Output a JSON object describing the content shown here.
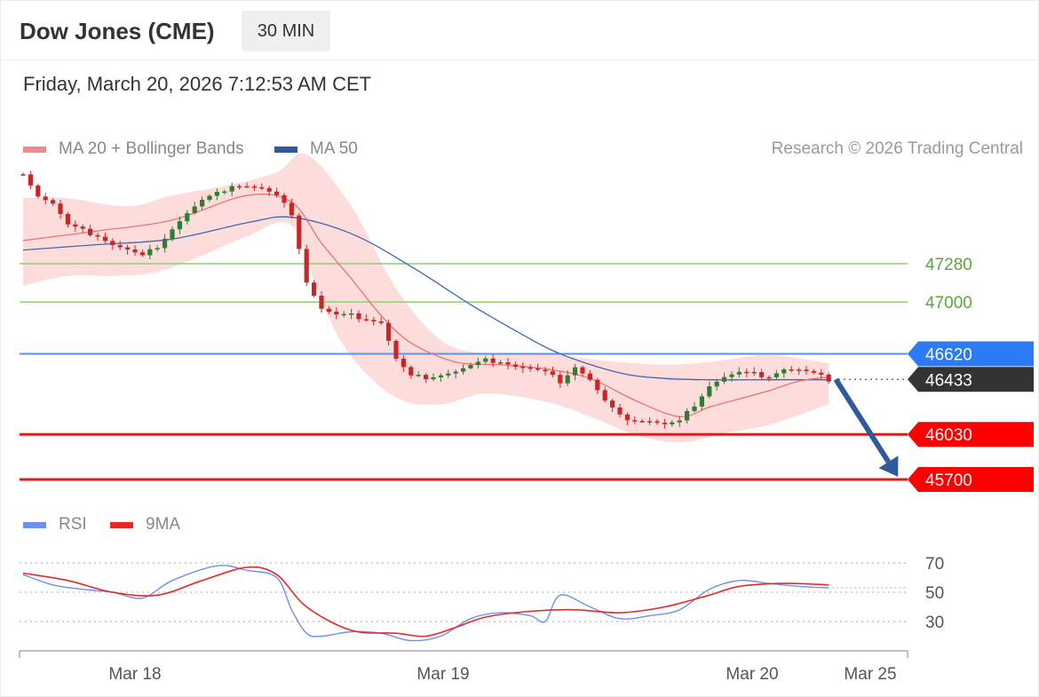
{
  "header": {
    "title": "Dow Jones (CME)",
    "timeframe": "30 MIN",
    "datetime": "Friday, March 20, 2026 7:12:53 AM CET"
  },
  "legend": {
    "ma20_label": "MA 20 + Bollinger Bands",
    "ma50_label": "MA 50",
    "rsi_label": "RSI",
    "rsi_ma_label": "9MA"
  },
  "credit": "Research © 2026 Trading Central",
  "colors": {
    "bullish": "#2e7d32",
    "bearish": "#c62828",
    "ma20": "#f06a6a",
    "bollinger_fill": "#fddcdc",
    "ma50": "#3f68b3",
    "green_level": "#8fcf6f",
    "blue_level": "#5b8ff9",
    "red_level": "#e31b1b",
    "current_label": "#333333",
    "rsi": "#6f8ff0",
    "rsi_ma": "#e82828",
    "arrow": "#2f5b9d"
  },
  "chart_data": [
    {
      "type": "candlestick",
      "title": "Dow Jones (CME)",
      "timeframe": "30 MIN",
      "x_ticks": [
        "Mar 18",
        "Mar 19",
        "Mar 20",
        "Mar 25"
      ],
      "price_levels": [
        {
          "value": 47280,
          "label": "47280",
          "style": "resistance-green"
        },
        {
          "value": 47000,
          "label": "47000",
          "style": "resistance-green"
        },
        {
          "value": 46620,
          "label": "46620",
          "style": "pivot-blue"
        },
        {
          "value": 46433,
          "label": "46433",
          "style": "current-price"
        },
        {
          "value": 46030,
          "label": "46030",
          "style": "support-red"
        },
        {
          "value": 45700,
          "label": "45700",
          "style": "support-red"
        }
      ],
      "forecast_arrow": {
        "from": 46433,
        "to": 45700
      },
      "close_path": [
        [
          0,
          47950
        ],
        [
          2,
          47780
        ],
        [
          4,
          47720
        ],
        [
          6,
          47560
        ],
        [
          8,
          47520
        ],
        [
          10,
          47490
        ],
        [
          12,
          47420
        ],
        [
          14,
          47380
        ],
        [
          16,
          47330
        ],
        [
          18,
          47410
        ],
        [
          20,
          47540
        ],
        [
          22,
          47650
        ],
        [
          24,
          47740
        ],
        [
          26,
          47790
        ],
        [
          28,
          47860
        ],
        [
          30,
          47850
        ],
        [
          32,
          47830
        ],
        [
          34,
          47770
        ],
        [
          36,
          47650
        ],
        [
          38,
          47150
        ],
        [
          40,
          46950
        ],
        [
          42,
          46900
        ],
        [
          44,
          46900
        ],
        [
          46,
          46880
        ],
        [
          48,
          46850
        ],
        [
          50,
          46580
        ],
        [
          52,
          46450
        ],
        [
          54,
          46450
        ],
        [
          56,
          46470
        ],
        [
          58,
          46490
        ],
        [
          60,
          46530
        ],
        [
          62,
          46570
        ],
        [
          64,
          46570
        ],
        [
          66,
          46530
        ],
        [
          68,
          46510
        ],
        [
          70,
          46480
        ],
        [
          72,
          46420
        ],
        [
          74,
          46530
        ],
        [
          76,
          46430
        ],
        [
          78,
          46270
        ],
        [
          80,
          46160
        ],
        [
          82,
          46140
        ],
        [
          84,
          46130
        ],
        [
          86,
          46100
        ],
        [
          88,
          46120
        ],
        [
          90,
          46250
        ],
        [
          92,
          46390
        ],
        [
          94,
          46450
        ],
        [
          96,
          46480
        ],
        [
          98,
          46470
        ],
        [
          100,
          46460
        ],
        [
          102,
          46510
        ],
        [
          104,
          46500
        ],
        [
          106,
          46470
        ],
        [
          108,
          46433
        ]
      ],
      "ma20_path": [
        [
          0,
          47450
        ],
        [
          10,
          47520
        ],
        [
          20,
          47600
        ],
        [
          30,
          47780
        ],
        [
          36,
          47730
        ],
        [
          40,
          47430
        ],
        [
          44,
          47170
        ],
        [
          48,
          46900
        ],
        [
          52,
          46700
        ],
        [
          58,
          46560
        ],
        [
          64,
          46540
        ],
        [
          70,
          46510
        ],
        [
          76,
          46440
        ],
        [
          82,
          46280
        ],
        [
          88,
          46160
        ],
        [
          92,
          46230
        ],
        [
          96,
          46290
        ],
        [
          100,
          46350
        ],
        [
          104,
          46420
        ],
        [
          108,
          46450
        ]
      ],
      "ma50_path": [
        [
          0,
          47380
        ],
        [
          10,
          47420
        ],
        [
          20,
          47460
        ],
        [
          30,
          47580
        ],
        [
          36,
          47620
        ],
        [
          44,
          47500
        ],
        [
          52,
          47260
        ],
        [
          60,
          46980
        ],
        [
          66,
          46790
        ],
        [
          72,
          46620
        ],
        [
          80,
          46480
        ],
        [
          86,
          46440
        ],
        [
          92,
          46430
        ],
        [
          100,
          46430
        ],
        [
          108,
          46430
        ]
      ],
      "bollinger_upper": [
        [
          0,
          47760
        ],
        [
          6,
          47760
        ],
        [
          14,
          47700
        ],
        [
          20,
          47780
        ],
        [
          28,
          47860
        ],
        [
          34,
          47950
        ],
        [
          38,
          48080
        ],
        [
          44,
          47700
        ],
        [
          50,
          47100
        ],
        [
          56,
          46720
        ],
        [
          62,
          46620
        ],
        [
          70,
          46620
        ],
        [
          78,
          46570
        ],
        [
          86,
          46540
        ],
        [
          92,
          46560
        ],
        [
          100,
          46610
        ],
        [
          108,
          46550
        ]
      ],
      "bollinger_lower": [
        [
          108,
          46250
        ],
        [
          100,
          46100
        ],
        [
          94,
          46040
        ],
        [
          88,
          45970
        ],
        [
          82,
          46030
        ],
        [
          76,
          46160
        ],
        [
          70,
          46270
        ],
        [
          62,
          46330
        ],
        [
          56,
          46250
        ],
        [
          50,
          46300
        ],
        [
          44,
          46600
        ],
        [
          40,
          47000
        ],
        [
          36,
          47560
        ],
        [
          30,
          47480
        ],
        [
          24,
          47340
        ],
        [
          18,
          47220
        ],
        [
          12,
          47190
        ],
        [
          6,
          47190
        ],
        [
          0,
          47120
        ]
      ]
    },
    {
      "type": "line",
      "series": [
        {
          "name": "RSI",
          "values": [
            [
              0,
              62
            ],
            [
              4,
              55
            ],
            [
              8,
              52
            ],
            [
              12,
              50
            ],
            [
              16,
              46
            ],
            [
              20,
              58
            ],
            [
              26,
              68
            ],
            [
              30,
              65
            ],
            [
              34,
              60
            ],
            [
              36,
              38
            ],
            [
              38,
              22
            ],
            [
              40,
              20
            ],
            [
              44,
              23
            ],
            [
              48,
              22
            ],
            [
              52,
              17
            ],
            [
              56,
              20
            ],
            [
              60,
              32
            ],
            [
              64,
              36
            ],
            [
              68,
              34
            ],
            [
              70,
              30
            ],
            [
              72,
              48
            ],
            [
              76,
              40
            ],
            [
              80,
              32
            ],
            [
              84,
              34
            ],
            [
              88,
              38
            ],
            [
              92,
              52
            ],
            [
              96,
              58
            ],
            [
              100,
              56
            ],
            [
              104,
              54
            ],
            [
              108,
              53
            ]
          ]
        },
        {
          "name": "9MA",
          "values": [
            [
              0,
              63
            ],
            [
              6,
              58
            ],
            [
              12,
              50
            ],
            [
              18,
              48
            ],
            [
              24,
              58
            ],
            [
              30,
              67
            ],
            [
              34,
              62
            ],
            [
              38,
              40
            ],
            [
              44,
              24
            ],
            [
              50,
              22
            ],
            [
              54,
              20
            ],
            [
              58,
              26
            ],
            [
              62,
              33
            ],
            [
              68,
              37
            ],
            [
              74,
              38
            ],
            [
              80,
              36
            ],
            [
              86,
              40
            ],
            [
              92,
              48
            ],
            [
              96,
              54
            ],
            [
              102,
              56
            ],
            [
              108,
              55
            ]
          ]
        }
      ],
      "y_ticks": [
        30,
        50,
        70
      ]
    }
  ]
}
